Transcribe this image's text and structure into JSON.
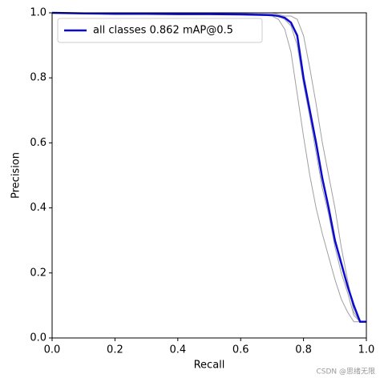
{
  "chart_data": {
    "type": "line",
    "xlabel": "Recall",
    "ylabel": "Precision",
    "x": [
      0,
      0.1,
      0.2,
      0.3,
      0.4,
      0.5,
      0.6,
      0.7,
      0.72,
      0.74,
      0.76,
      0.78,
      0.8,
      0.82,
      0.84,
      0.86,
      0.88,
      0.9,
      0.92,
      0.94,
      0.96,
      0.98,
      1.0
    ],
    "series": [
      {
        "color": "#a0a0a0",
        "values": [
          1,
          1,
          1,
          1,
          1,
          1,
          0.998,
          0.99,
          0.98,
          0.95,
          0.88,
          0.75,
          0.62,
          0.5,
          0.4,
          0.32,
          0.25,
          0.18,
          0.12,
          0.08,
          0.05,
          0.05,
          0.05
        ]
      },
      {
        "color": "#a0a0a0",
        "values": [
          1,
          1,
          1,
          1,
          1,
          1,
          1,
          1,
          0.995,
          0.99,
          0.99,
          0.98,
          0.93,
          0.83,
          0.72,
          0.6,
          0.5,
          0.4,
          0.28,
          0.18,
          0.08,
          0.05,
          0.05
        ]
      },
      {
        "color": "#a0a0a0",
        "values": [
          1,
          1,
          1,
          1,
          1,
          1,
          0.998,
          0.995,
          0.99,
          0.98,
          0.96,
          0.9,
          0.78,
          0.68,
          0.57,
          0.46,
          0.38,
          0.28,
          0.2,
          0.14,
          0.07,
          0.05,
          0.05
        ]
      },
      {
        "name": "all classes 0.862 mAP@0.5",
        "color": "#0b0bd0",
        "values": [
          1.0,
          0.998,
          0.997,
          0.997,
          0.996,
          0.996,
          0.995,
          0.993,
          0.99,
          0.985,
          0.97,
          0.93,
          0.8,
          0.7,
          0.6,
          0.49,
          0.4,
          0.3,
          0.23,
          0.16,
          0.1,
          0.05,
          0.05
        ]
      }
    ],
    "xlim": [
      0,
      1
    ],
    "ylim": [
      0,
      1
    ],
    "xticks": [
      {
        "value": 0,
        "label": "0.0"
      },
      0.2,
      0.4,
      0.6,
      0.8,
      {
        "value": 1,
        "label": "1.0"
      }
    ],
    "yticks": [
      {
        "value": 0,
        "label": "0.0"
      },
      0.2,
      0.4,
      0.6,
      0.8,
      {
        "value": 1,
        "label": "1.0"
      }
    ],
    "legend": "upper left",
    "watermark": "CSDN @思绪无限"
  }
}
